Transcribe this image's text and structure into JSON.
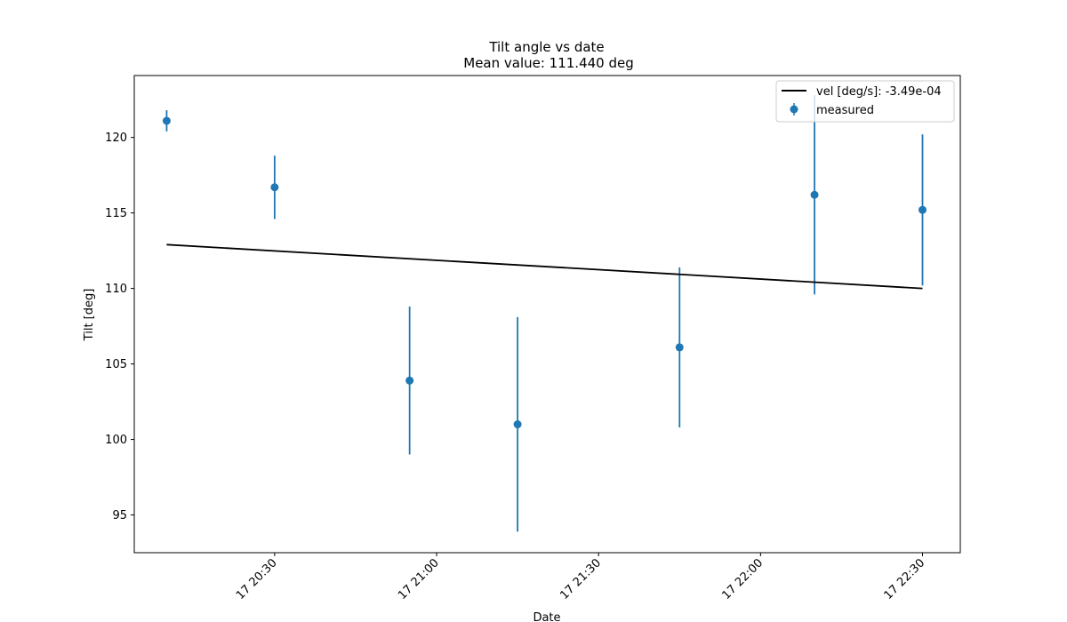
{
  "chart_data": {
    "type": "scatter",
    "title": "Tilt angle vs date",
    "subtitle": "Mean value: 111.440 deg",
    "xlabel": "Date",
    "ylabel": "Tilt [deg]",
    "xlim": [
      "17 20:04",
      "17 22:37"
    ],
    "ylim": [
      92.5,
      124.1
    ],
    "x_ticks": [
      {
        "value": "17 20:30",
        "label": "17 20:30"
      },
      {
        "value": "17 21:00",
        "label": "17 21:00"
      },
      {
        "value": "17 21:30",
        "label": "17 21:30"
      },
      {
        "value": "17 22:00",
        "label": "17 22:00"
      },
      {
        "value": "17 22:30",
        "label": "17 22:30"
      }
    ],
    "y_ticks": [
      95,
      100,
      105,
      110,
      115,
      120
    ],
    "grid": false,
    "legend_position": "top-right",
    "series": [
      {
        "name": "measured",
        "kind": "errorbar",
        "color": "#1f77b4",
        "x": [
          "17 20:10",
          "17 20:30",
          "17 20:55",
          "17 21:15",
          "17 21:45",
          "17 22:10",
          "17 22:30"
        ],
        "y": [
          121.1,
          116.7,
          103.9,
          101.0,
          106.1,
          116.2,
          115.2
        ],
        "yerr": [
          0.7,
          2.1,
          4.9,
          7.1,
          5.3,
          6.6,
          5.0
        ]
      },
      {
        "name": "vel [deg/s]: -3.49e-04",
        "kind": "line",
        "color": "#000000",
        "x": [
          "17 20:10",
          "17 22:30"
        ],
        "y": [
          112.9,
          110.0
        ]
      }
    ]
  }
}
